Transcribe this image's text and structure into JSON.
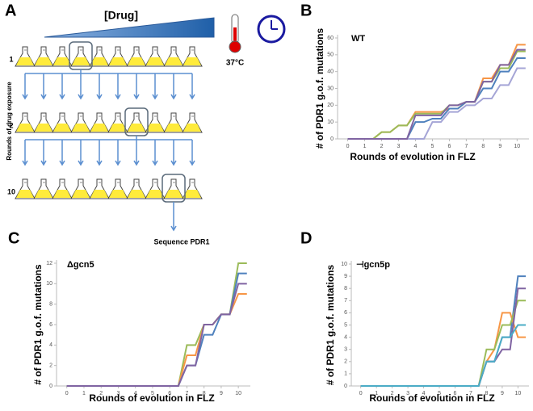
{
  "diagram": {
    "panel": "A",
    "drug": "[Drug]",
    "temperature": "37°C",
    "rounds_label": "Rounds of drug exposure",
    "rows": [
      "1",
      "2",
      "10"
    ],
    "output": "Sequence PDR1"
  },
  "chart_data": [
    {
      "type": "line",
      "panel": "B",
      "label": "WT",
      "xlabel": "Rounds of evolution in FLZ",
      "ylabel": "# of PDR1 g.o.f. mutations",
      "x": [
        0,
        0.5,
        1,
        1.5,
        2,
        2.5,
        3,
        3.5,
        4,
        4.5,
        5,
        5.5,
        6,
        6.5,
        7,
        7.5,
        8,
        8.5,
        9,
        9.5,
        10,
        10.5
      ],
      "series": [
        {
          "color": "#f79646",
          "values": [
            0,
            0,
            0,
            0,
            4,
            4,
            8,
            8,
            16,
            16,
            16,
            16,
            18,
            18,
            22,
            22,
            36,
            36,
            44,
            44,
            56,
            56
          ]
        },
        {
          "color": "#9bbb59",
          "values": [
            0,
            0,
            0,
            0,
            4,
            4,
            8,
            8,
            15,
            15,
            15,
            15,
            20,
            20,
            22,
            22,
            34,
            34,
            42,
            42,
            52,
            52
          ]
        },
        {
          "color": "#4f81bd",
          "values": [
            0,
            0,
            0,
            0,
            0,
            0,
            0,
            0,
            10,
            10,
            12,
            12,
            18,
            18,
            22,
            22,
            30,
            30,
            40,
            40,
            48,
            48
          ]
        },
        {
          "color": "#a5a5d6",
          "values": [
            0,
            0,
            0,
            0,
            0,
            0,
            0,
            0,
            0,
            0,
            10,
            10,
            16,
            16,
            20,
            20,
            24,
            24,
            32,
            32,
            42,
            42
          ]
        },
        {
          "color": "#8064a2",
          "values": [
            0,
            0,
            0,
            0,
            0,
            0,
            0,
            0,
            14,
            14,
            14,
            14,
            20,
            20,
            22,
            22,
            34,
            34,
            44,
            44,
            53,
            53
          ]
        }
      ],
      "xlim": [
        -0.6,
        10.7
      ],
      "ylim": [
        0,
        60
      ],
      "xticks": [
        0,
        1,
        2,
        3,
        4,
        5,
        6,
        7,
        8,
        9,
        10
      ],
      "yticks": [
        0,
        10,
        20,
        30,
        40,
        50,
        60
      ]
    },
    {
      "type": "line",
      "panel": "C",
      "label": "Δgcn5",
      "xlabel": "Rounds of evolution in FLZ",
      "ylabel": "# of PDR1 g.o.f. mutations",
      "x": [
        0,
        0.5,
        1,
        1.5,
        2,
        2.5,
        3,
        3.5,
        4,
        4.5,
        5,
        5.5,
        6,
        6.5,
        7,
        7.5,
        8,
        8.5,
        9,
        9.5,
        10,
        10.5
      ],
      "series": [
        {
          "color": "#9bbb59",
          "values": [
            0,
            0,
            0,
            0,
            0,
            0,
            0,
            0,
            0,
            0,
            0,
            0,
            0,
            0,
            4,
            4,
            6,
            6,
            7,
            7,
            12,
            12
          ]
        },
        {
          "color": "#f79646",
          "values": [
            0,
            0,
            0,
            0,
            0,
            0,
            0,
            0,
            0,
            0,
            0,
            0,
            0,
            0,
            3,
            3,
            6,
            6,
            7,
            7,
            9,
            9
          ]
        },
        {
          "color": "#4f81bd",
          "values": [
            0,
            0,
            0,
            0,
            0,
            0,
            0,
            0,
            0,
            0,
            0,
            0,
            0,
            0,
            2,
            2,
            5,
            5,
            7,
            7,
            11,
            11
          ]
        },
        {
          "color": "#8064a2",
          "values": [
            0,
            0,
            0,
            0,
            0,
            0,
            0,
            0,
            0,
            0,
            0,
            0,
            0,
            0,
            2,
            2,
            6,
            6,
            7,
            7,
            10,
            10
          ]
        }
      ],
      "xlim": [
        -0.6,
        10.7
      ],
      "ylim": [
        0,
        12
      ],
      "xticks": [
        0,
        1,
        2,
        3,
        4,
        5,
        6,
        7,
        8,
        9,
        10
      ],
      "yticks": [
        0,
        2,
        4,
        6,
        8,
        10,
        12
      ]
    },
    {
      "type": "line",
      "panel": "D",
      "label": "⊣gcn5p",
      "xlabel": "Rounds of evolution in FLZ",
      "ylabel": "# of PDR1 g.o.f. mutations",
      "x": [
        0,
        0.5,
        1,
        1.5,
        2,
        2.5,
        3,
        3.5,
        4,
        4.5,
        5,
        5.5,
        6,
        6.5,
        7,
        7.5,
        8,
        8.5,
        9,
        9.5,
        10,
        10.5
      ],
      "series": [
        {
          "color": "#4f81bd",
          "values": [
            0,
            0,
            0,
            0,
            0,
            0,
            0,
            0,
            0,
            0,
            0,
            0,
            0,
            0,
            0,
            0,
            2,
            2,
            4,
            4,
            9,
            9
          ]
        },
        {
          "color": "#f79646",
          "values": [
            0,
            0,
            0,
            0,
            0,
            0,
            0,
            0,
            0,
            0,
            0,
            0,
            0,
            0,
            0,
            0,
            2,
            3,
            6,
            6,
            4,
            4
          ]
        },
        {
          "color": "#9bbb59",
          "values": [
            0,
            0,
            0,
            0,
            0,
            0,
            0,
            0,
            0,
            0,
            0,
            0,
            0,
            0,
            0,
            0,
            3,
            3,
            5,
            5,
            7,
            7
          ]
        },
        {
          "color": "#8064a2",
          "values": [
            0,
            0,
            0,
            0,
            0,
            0,
            0,
            0,
            0,
            0,
            0,
            0,
            0,
            0,
            0,
            0,
            2,
            2,
            3,
            3,
            8,
            8
          ]
        },
        {
          "color": "#4bacc6",
          "values": [
            0,
            0,
            0,
            0,
            0,
            0,
            0,
            0,
            0,
            0,
            0,
            0,
            0,
            0,
            0,
            0,
            2,
            2,
            4,
            4,
            5,
            5
          ]
        }
      ],
      "xlim": [
        -0.6,
        10.7
      ],
      "ylim": [
        0,
        10
      ],
      "xticks": [
        0,
        1,
        2,
        3,
        4,
        5,
        6,
        7,
        8,
        9,
        10
      ],
      "yticks": [
        0,
        1,
        2,
        3,
        4,
        5,
        6,
        7,
        8,
        9,
        10
      ]
    }
  ]
}
